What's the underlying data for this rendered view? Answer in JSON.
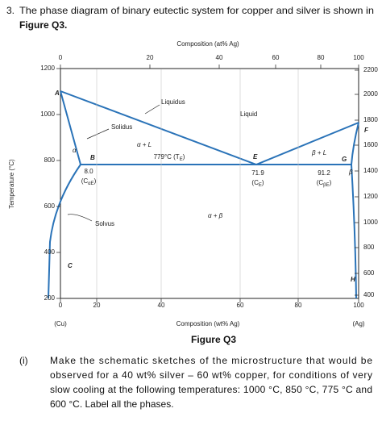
{
  "question": {
    "number": "3.",
    "text": "The phase diagram of binary eutectic system for copper and silver is shown in",
    "figure_ref": "Figure Q3."
  },
  "figure": {
    "top_axis": {
      "title": "Composition (at% Ag)",
      "ticks": [
        "0",
        "20",
        "40",
        "60",
        "80",
        "100"
      ]
    },
    "bottom_axis": {
      "title": "Composition (wt% Ag)",
      "ticks": [
        "0",
        "20",
        "40",
        "60",
        "80",
        "100"
      ],
      "left_end": "(Cu)",
      "right_end": "(Ag)"
    },
    "left_axis": {
      "title": "Temperature (°C)",
      "ticks": [
        "1200",
        "1000",
        "800",
        "600",
        "400",
        "200"
      ]
    },
    "right_axis": {
      "ticks": [
        "2200",
        "2000",
        "1800",
        "1600",
        "1400",
        "1200",
        "1000",
        "800",
        "600",
        "400"
      ]
    },
    "points": [
      "A",
      "B",
      "C",
      "E",
      "F",
      "G",
      "H"
    ],
    "regions": [
      "α",
      "β",
      "α + L",
      "β + L",
      "α + β",
      "Liquid"
    ],
    "curves": [
      "Liquidus",
      "Solidus",
      "Solvus"
    ],
    "eutectic": {
      "text": "779°C (T",
      "sub": "E",
      "end": ")"
    },
    "compositions": [
      {
        "value": "8.0",
        "text": "(C",
        "sub": "αE",
        "end": ")"
      },
      {
        "value": "71.9",
        "text": "(C",
        "sub": "E",
        "end": ")"
      },
      {
        "value": "91.2",
        "text": "(C",
        "sub": "βE",
        "end": ")"
      }
    ],
    "caption": "Figure Q3"
  },
  "subquestion": {
    "number": "(i)",
    "lines": [
      "Make the schematic sketches of the microstructure that would be",
      "observed for a 40 wt% silver – 60 wt% copper, for conditions of very",
      "slow cooling at the following temperatures: 1000 °C, 850 °C, 775 °C and",
      "600 °C. Label all the phases."
    ]
  }
}
